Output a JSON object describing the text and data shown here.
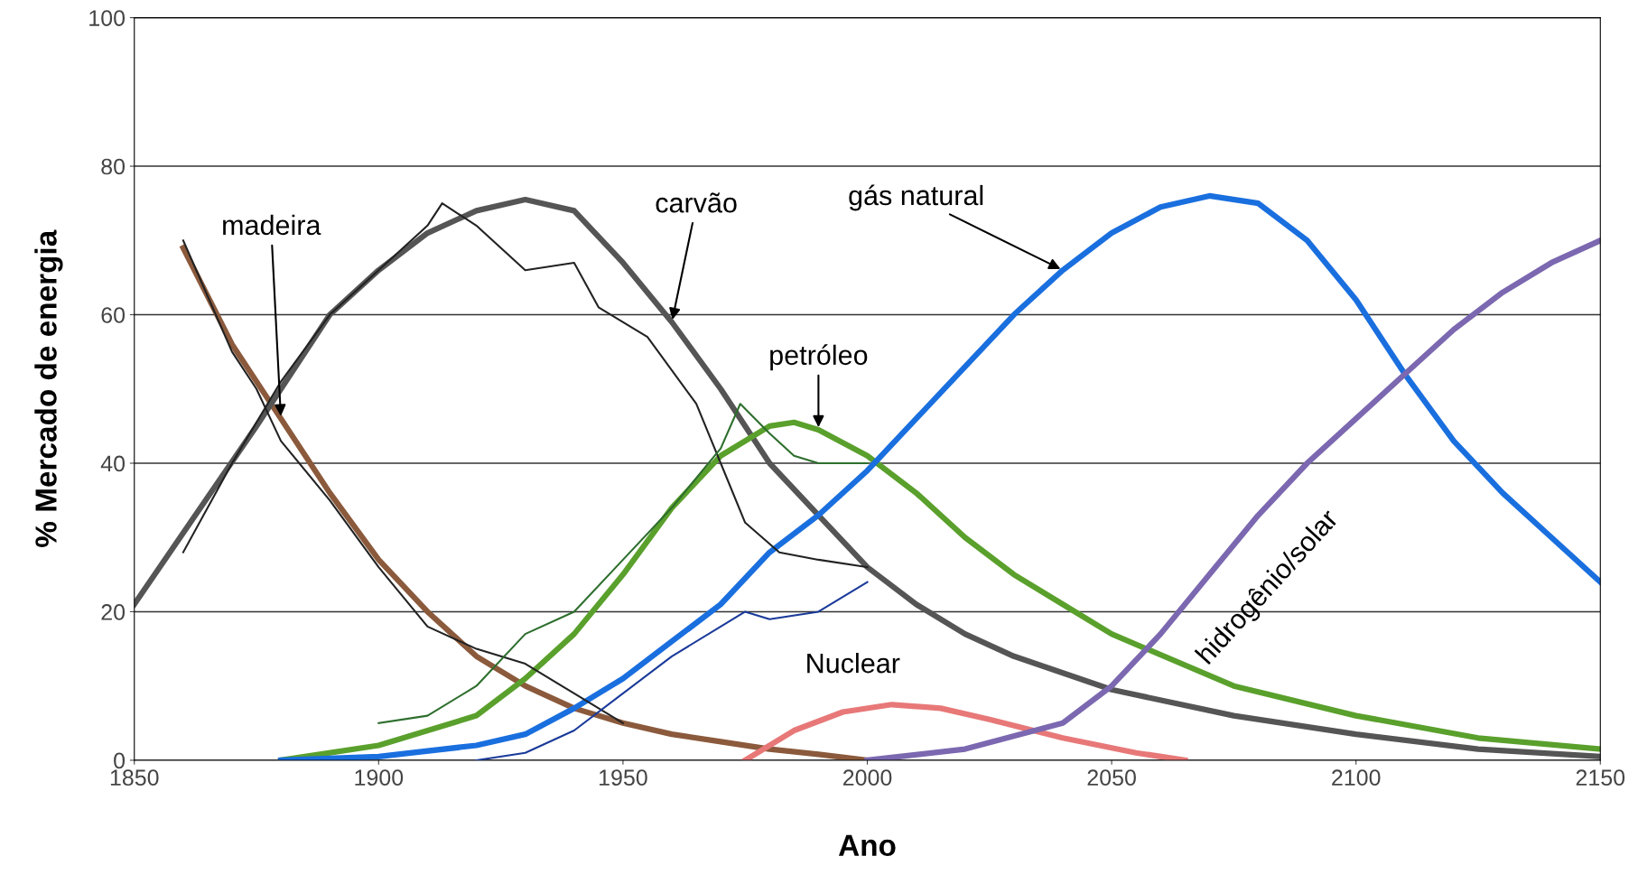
{
  "chart_data": {
    "type": "line",
    "xlabel": "Ano",
    "ylabel": "% Mercado de energia",
    "xlim": [
      1850,
      2150
    ],
    "ylim": [
      0,
      100
    ],
    "xticks": [
      1850,
      1900,
      1950,
      2000,
      2050,
      2100,
      2150
    ],
    "yticks": [
      0,
      20,
      40,
      60,
      80,
      100
    ],
    "grid": "y",
    "line_style": "solid",
    "series": [
      {
        "color": "#8b5a3c",
        "x": [
          1860,
          1870,
          1880,
          1890,
          1900,
          1910,
          1920,
          1930,
          1940,
          1950,
          1960,
          1970,
          1980,
          1990,
          2000
        ],
        "values": [
          69,
          56,
          46,
          36,
          27,
          20,
          14,
          10,
          7,
          5,
          3.5,
          2.5,
          1.5,
          0.8,
          0
        ]
      },
      {
        "color": "#555555",
        "x": [
          1850,
          1875,
          1890,
          1900,
          1910,
          1920,
          1930,
          1940,
          1950,
          1960,
          1970,
          1980,
          1990,
          2000,
          2010,
          2020,
          2030,
          2050,
          2075,
          2100,
          2125,
          2150
        ],
        "values": [
          21,
          45,
          60,
          66,
          71,
          74,
          75.5,
          74,
          67,
          59,
          50,
          40,
          33,
          26,
          21,
          17,
          14,
          9.5,
          6,
          3.5,
          1.5,
          0.5
        ]
      },
      {
        "color": "#5aa02c",
        "x": [
          1880,
          1900,
          1920,
          1930,
          1940,
          1950,
          1960,
          1970,
          1980,
          1985,
          1990,
          2000,
          2010,
          2020,
          2030,
          2040,
          2050,
          2075,
          2100,
          2125,
          2150
        ],
        "values": [
          0,
          2,
          6,
          11,
          17,
          25,
          34,
          41,
          45,
          45.5,
          44.5,
          41,
          36,
          30,
          25,
          21,
          17,
          10,
          6,
          3,
          1.5
        ]
      },
      {
        "color": "#1a6fdf",
        "x": [
          1880,
          1900,
          1920,
          1930,
          1940,
          1950,
          1960,
          1970,
          1980,
          1990,
          2000,
          2010,
          2020,
          2030,
          2040,
          2050,
          2060,
          2070,
          2080,
          2090,
          2100,
          2110,
          2120,
          2130,
          2140,
          2150
        ],
        "values": [
          0,
          0.5,
          2,
          3.5,
          7,
          11,
          16,
          21,
          28,
          33,
          39,
          46,
          53,
          60,
          66,
          71,
          74.5,
          76,
          75,
          70,
          62,
          52,
          43,
          36,
          30,
          24
        ]
      },
      {
        "color": "#e87878",
        "x": [
          1975,
          1985,
          1995,
          2005,
          2015,
          2025,
          2040,
          2055,
          2065
        ],
        "values": [
          0,
          4,
          6.5,
          7.5,
          7,
          5.5,
          3,
          1,
          0
        ]
      },
      {
        "color": "#7b68b0",
        "x": [
          2000,
          2020,
          2040,
          2050,
          2060,
          2070,
          2080,
          2090,
          2100,
          2110,
          2120,
          2130,
          2140,
          2150
        ],
        "values": [
          0,
          1.5,
          5,
          10,
          17,
          25,
          33,
          40,
          46,
          52,
          58,
          63,
          67,
          70
        ]
      },
      {
        "color": "#222222",
        "x": [
          1860,
          1870,
          1875,
          1880,
          1890,
          1900,
          1910,
          1920,
          1930,
          1940,
          1950
        ],
        "values": [
          70,
          55,
          50,
          43,
          35,
          26,
          18,
          15,
          13,
          9,
          5
        ]
      },
      {
        "color": "#222222",
        "x": [
          1860,
          1870,
          1880,
          1890,
          1900,
          1910,
          1913,
          1920,
          1930,
          1940,
          1945,
          1955,
          1965,
          1970,
          1975,
          1982,
          1990,
          2000
        ],
        "values": [
          28,
          40,
          51,
          60,
          66,
          72,
          75,
          72,
          66,
          67,
          61,
          57,
          48,
          40,
          32,
          28,
          27,
          26
        ]
      },
      {
        "color": "#2d6e2d",
        "x": [
          1900,
          1910,
          1920,
          1930,
          1940,
          1950,
          1960,
          1970,
          1974,
          1980,
          1985,
          1990,
          2000
        ],
        "values": [
          5,
          6,
          10,
          17,
          20,
          27,
          34,
          42,
          48,
          44,
          41,
          40,
          40
        ]
      },
      {
        "color": "#1a3a9a",
        "x": [
          1920,
          1930,
          1940,
          1950,
          1960,
          1970,
          1975,
          1980,
          1990,
          2000
        ],
        "values": [
          0,
          1,
          4,
          9,
          14,
          18,
          20,
          19,
          20,
          24
        ]
      }
    ],
    "annotations": [
      {
        "text": "madeira",
        "x": 1880,
        "y": 46
      },
      {
        "text": "carvão",
        "x": 1960,
        "y": 59
      },
      {
        "text": "gás natural",
        "x": 2040,
        "y": 66
      },
      {
        "text": "petróleo",
        "x": 1990,
        "y": 44.5
      },
      "Nuclear",
      "hidrogênio/solar"
    ]
  }
}
